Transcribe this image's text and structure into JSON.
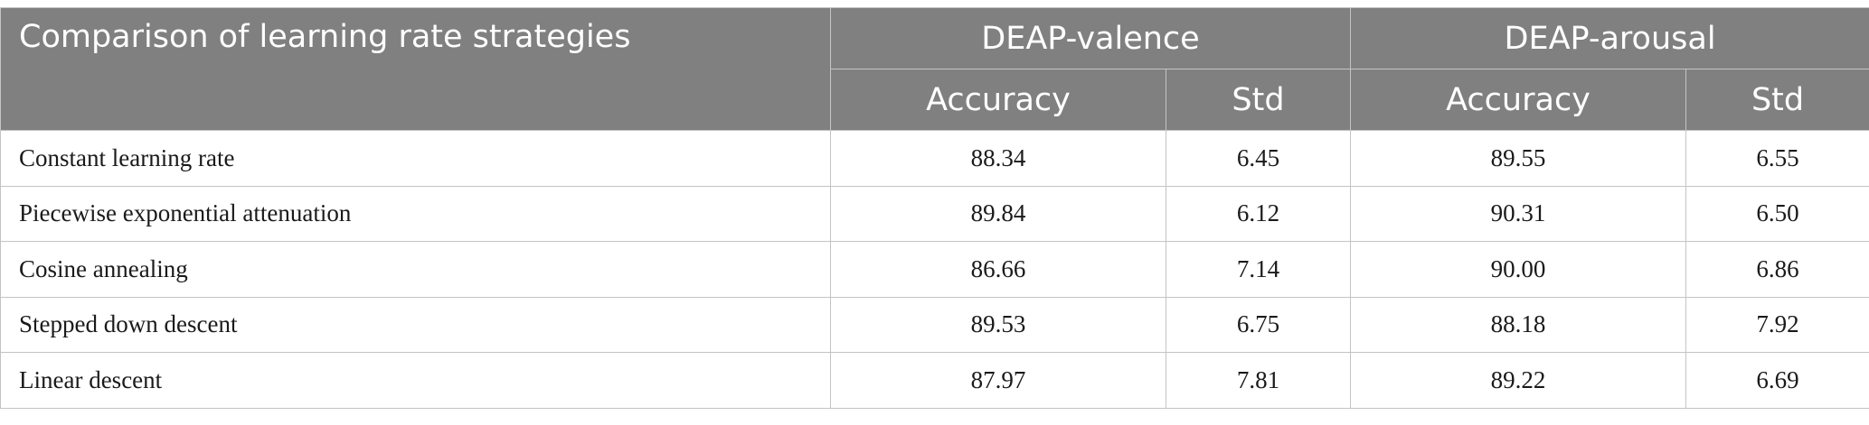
{
  "table": {
    "corner_label": "Comparison of learning rate strategies",
    "groups": [
      {
        "label": "DEAP-valence"
      },
      {
        "label": "DEAP-arousal"
      }
    ],
    "subheaders": [
      "Accuracy",
      "Std",
      "Accuracy",
      "Std"
    ],
    "rows": [
      {
        "label": "Constant learning rate",
        "values": [
          "88.34",
          "6.45",
          "89.55",
          "6.55"
        ]
      },
      {
        "label": "Piecewise exponential attenuation",
        "values": [
          "89.84",
          "6.12",
          "90.31",
          "6.50"
        ]
      },
      {
        "label": "Cosine annealing",
        "values": [
          "86.66",
          "7.14",
          "90.00",
          "6.86"
        ]
      },
      {
        "label": "Stepped down descent",
        "values": [
          "89.53",
          "6.75",
          "88.18",
          "7.92"
        ]
      },
      {
        "label": "Linear descent",
        "values": [
          "87.97",
          "7.81",
          "89.22",
          "6.69"
        ]
      }
    ]
  }
}
